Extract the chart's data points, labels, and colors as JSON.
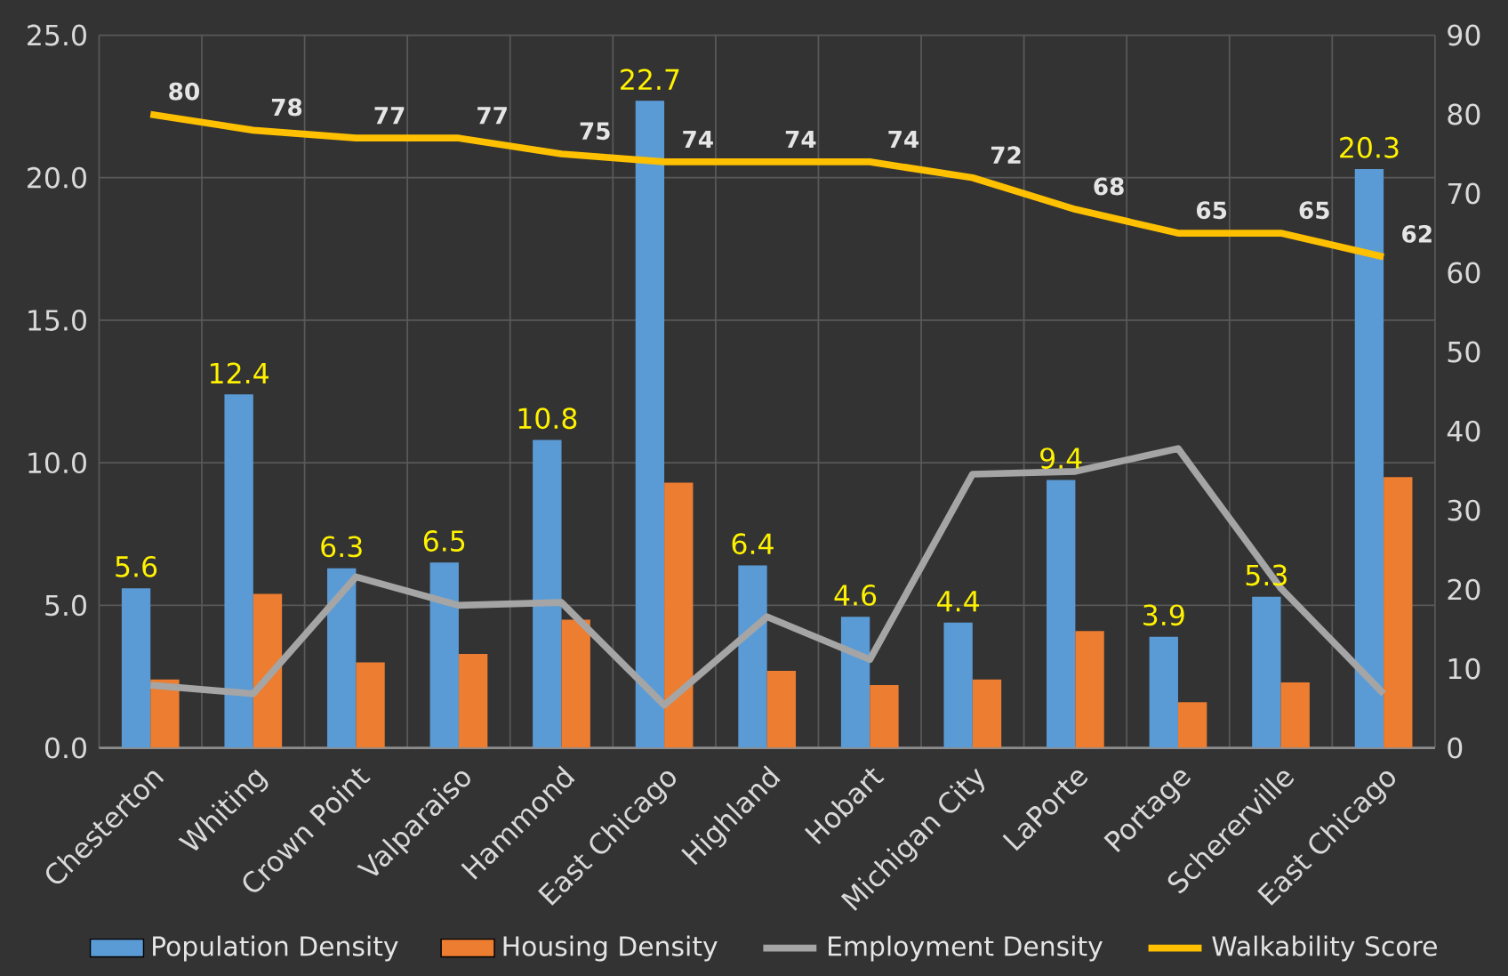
{
  "chart_data": {
    "type": "bar",
    "categories": [
      "Chesterton",
      "Whiting",
      "Crown Point",
      "Valparaiso",
      "Hammond",
      "East Chicago",
      "Highland",
      "Hobart",
      "Michigan City",
      "LaPorte",
      "Portage",
      "Schererville",
      "East Chicago"
    ],
    "series": [
      {
        "name": "Population Density",
        "type": "bar",
        "color": "#5b9bd5",
        "values": [
          5.6,
          12.4,
          6.3,
          6.5,
          10.8,
          22.7,
          6.4,
          4.6,
          4.4,
          9.4,
          3.9,
          5.3,
          20.3
        ],
        "value_labels": [
          "5.6",
          "12.4",
          "6.3",
          "6.5",
          "10.8",
          "22.7",
          "6.4",
          "4.6",
          "4.4",
          "9.4",
          "3.9",
          "5.3",
          "20.3"
        ]
      },
      {
        "name": "Housing Density",
        "type": "bar",
        "color": "#ed7d31",
        "values": [
          2.4,
          5.4,
          3.0,
          3.3,
          4.5,
          9.3,
          2.7,
          2.2,
          2.4,
          4.1,
          1.6,
          2.3,
          9.5
        ]
      },
      {
        "name": "Employment Density",
        "type": "line",
        "color": "#a5a5a5",
        "values": [
          2.2,
          1.9,
          6.0,
          5.0,
          5.1,
          1.5,
          4.6,
          3.1,
          9.6,
          9.7,
          10.5,
          5.6,
          1.9
        ]
      },
      {
        "name": "Walkability Score",
        "type": "line",
        "axis": "y2",
        "color": "#ffc000",
        "values": [
          80,
          78,
          77,
          77,
          75,
          74,
          74,
          74,
          72,
          68,
          65,
          65,
          62
        ],
        "value_labels": [
          "80",
          "78",
          "77",
          "77",
          "75",
          "74",
          "74",
          "74",
          "72",
          "68",
          "65",
          "65",
          "62"
        ]
      }
    ],
    "ylim": [
      0,
      25
    ],
    "yticks": [
      {
        "value": 0,
        "label": "0.0"
      },
      {
        "value": 5,
        "label": "5.0"
      },
      {
        "value": 10,
        "label": "10.0"
      },
      {
        "value": 15,
        "label": "15.0"
      },
      {
        "value": 20,
        "label": "20.0"
      },
      {
        "value": 25,
        "label": "25.0"
      }
    ],
    "y2lim": [
      0,
      90
    ],
    "y2ticks": [
      0,
      10,
      20,
      30,
      40,
      50,
      60,
      70,
      80,
      90
    ],
    "grid": true,
    "legend": "bottom"
  }
}
